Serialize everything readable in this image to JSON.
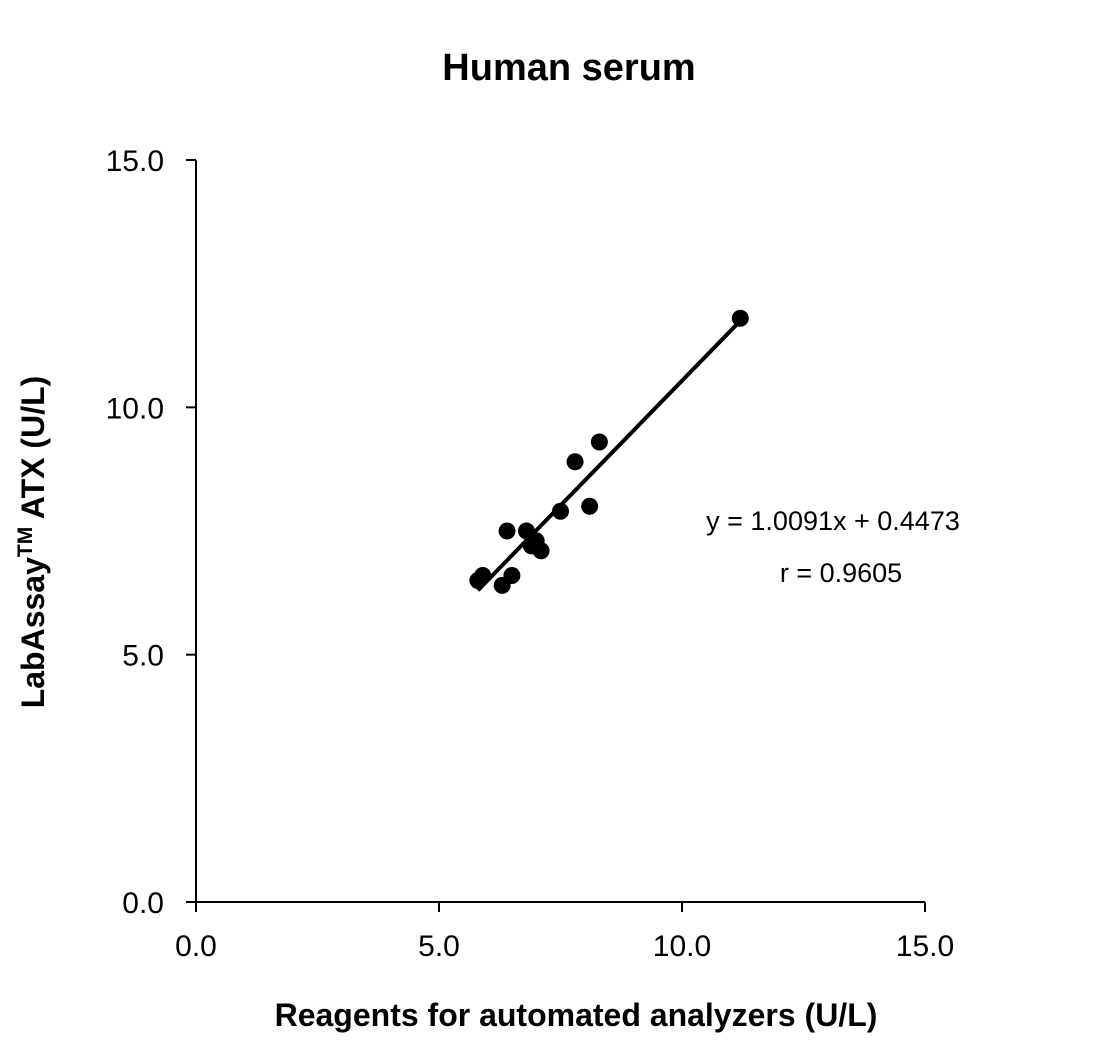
{
  "chart_data": {
    "type": "scatter",
    "title": "Human serum",
    "xlabel": "Reagents for automated analyzers (U/L)",
    "ylabel_main": "LabAssay",
    "ylabel_sup": "TM",
    "ylabel_rest": " ATX (U/L)",
    "xlim": [
      0,
      15
    ],
    "ylim": [
      0,
      15
    ],
    "xticks": [
      "0.0",
      "5.0",
      "10.0",
      "15.0"
    ],
    "yticks": [
      "0.0",
      "5.0",
      "10.0",
      "15.0"
    ],
    "grid": false,
    "points": [
      {
        "x": 5.8,
        "y": 6.5
      },
      {
        "x": 5.9,
        "y": 6.6
      },
      {
        "x": 6.3,
        "y": 6.4
      },
      {
        "x": 6.4,
        "y": 7.5
      },
      {
        "x": 6.5,
        "y": 6.6
      },
      {
        "x": 6.8,
        "y": 7.5
      },
      {
        "x": 6.9,
        "y": 7.2
      },
      {
        "x": 7.0,
        "y": 7.3
      },
      {
        "x": 7.1,
        "y": 7.1
      },
      {
        "x": 7.5,
        "y": 7.9
      },
      {
        "x": 7.8,
        "y": 8.9
      },
      {
        "x": 8.1,
        "y": 8.0
      },
      {
        "x": 8.3,
        "y": 9.3
      },
      {
        "x": 11.2,
        "y": 11.8
      }
    ],
    "trendline": {
      "slope": 1.0091,
      "intercept": 0.4473,
      "x_range": [
        5.8,
        11.2
      ]
    },
    "annotations": [
      "y = 1.0091x + 0.4473",
      "r = 0.9605"
    ],
    "marker_color": "#000000"
  }
}
